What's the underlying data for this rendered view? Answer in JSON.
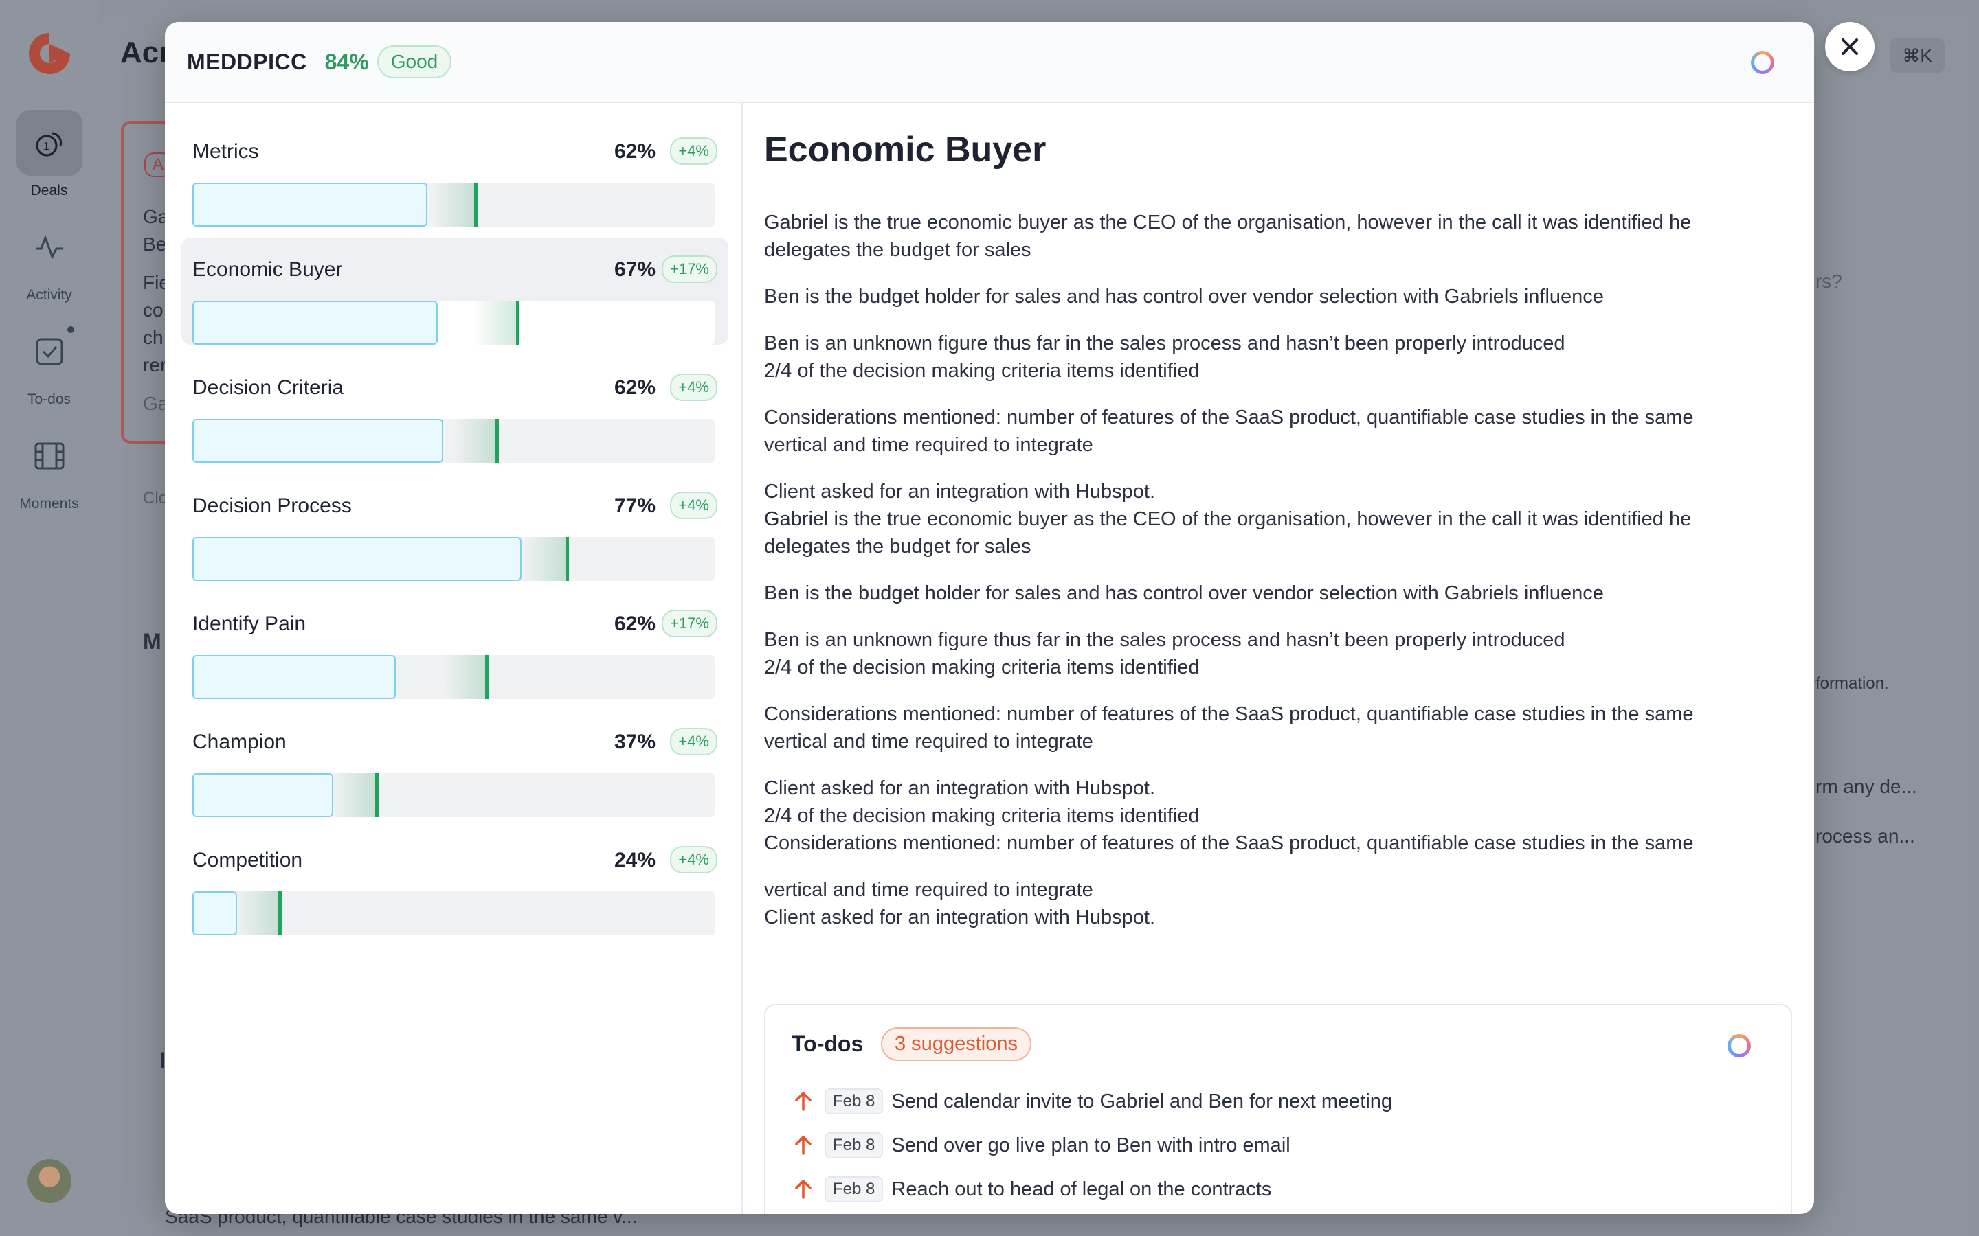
{
  "nav": {
    "items": [
      {
        "label": "Deals",
        "icon": "deals-icon",
        "active": true
      },
      {
        "label": "Activity",
        "icon": "activity-icon",
        "active": false
      },
      {
        "label": "To-dos",
        "icon": "todos-icon",
        "active": false
      },
      {
        "label": "Moments",
        "icon": "film-icon",
        "active": false
      }
    ]
  },
  "background": {
    "title_fragment": "Acr",
    "shortcut": "⌘K",
    "badge_fragment": "A",
    "card_fragments": [
      "Ga",
      "Be",
      "Fie",
      "co",
      "ch",
      "rer",
      "Ga",
      "Clo",
      "M",
      "I"
    ],
    "right_fragments": [
      "rs?",
      "formation.",
      "rm any de...",
      "rocess an..."
    ],
    "bottom_fragment": "SaaS product, quantifiable case studies in the same v..."
  },
  "modal": {
    "title": "MEDDPICC",
    "score": "84%",
    "score_badge": "Good",
    "metrics": [
      {
        "name": "Metrics",
        "pct": "62%",
        "delta": "+4%",
        "fill": 0.45,
        "marker": 0.54
      },
      {
        "name": "Economic Buyer",
        "pct": "67%",
        "delta": "+17%",
        "fill": 0.47,
        "marker": 0.62,
        "selected": true
      },
      {
        "name": "Decision Criteria",
        "pct": "62%",
        "delta": "+4%",
        "fill": 0.48,
        "marker": 0.58
      },
      {
        "name": "Decision Process",
        "pct": "77%",
        "delta": "+4%",
        "fill": 0.63,
        "marker": 0.715
      },
      {
        "name": "Identify Pain",
        "pct": "62%",
        "delta": "+17%",
        "fill": 0.39,
        "marker": 0.56
      },
      {
        "name": "Champion",
        "pct": "37%",
        "delta": "+4%",
        "fill": 0.27,
        "marker": 0.35
      },
      {
        "name": "Competition",
        "pct": "24%",
        "delta": "+4%",
        "fill": 0.085,
        "marker": 0.165
      }
    ],
    "detail": {
      "title": "Economic Buyer",
      "paragraphs": [
        "Gabriel is the true economic buyer as the CEO of the organisation, however in the call it was identified he",
        "delegates the budget for sales",
        "Ben is the budget holder for sales and has control over vendor selection with Gabriels influence",
        "Ben is an unknown figure thus far in the sales process and hasn’t been properly introduced",
        "2/4 of the decision making criteria items identified",
        "Considerations mentioned: number of features of the SaaS product, quantifiable case studies in the same",
        "vertical and time required to integrate",
        "Client asked for an integration with Hubspot.",
        "Gabriel is the true economic buyer as the CEO of the organisation, however in the call it was identified he",
        "delegates the budget for sales",
        "Ben is the budget holder for sales and has control over vendor selection with Gabriels influence",
        "Ben is an unknown figure thus far in the sales process and hasn’t been properly introduced",
        "2/4 of the decision making criteria items identified",
        "Considerations mentioned: number of features of the SaaS product, quantifiable case studies in the same",
        "vertical and time required to integrate",
        "Client asked for an integration with Hubspot.",
        "2/4 of the decision making criteria items identified",
        "Considerations mentioned: number of features of the SaaS product, quantifiable case studies in the same",
        "vertical and time required to integrate",
        "Client asked for an integration with Hubspot."
      ]
    },
    "todos": {
      "title": "To-dos",
      "badge": "3 suggestions",
      "items": [
        {
          "date": "Feb 8",
          "text": "Send calendar invite to Gabriel and Ben for next meeting"
        },
        {
          "date": "Feb 8",
          "text": "Send over go live plan to Ben with intro email"
        },
        {
          "date": "Feb 8",
          "text": "Reach out to head of legal on the contracts"
        }
      ]
    }
  },
  "colors": {
    "accent_green": "#2e9c5f",
    "accent_orange": "#e4572e",
    "bar_fill": "#e9f9fe",
    "bar_border": "#7fd0ea"
  }
}
